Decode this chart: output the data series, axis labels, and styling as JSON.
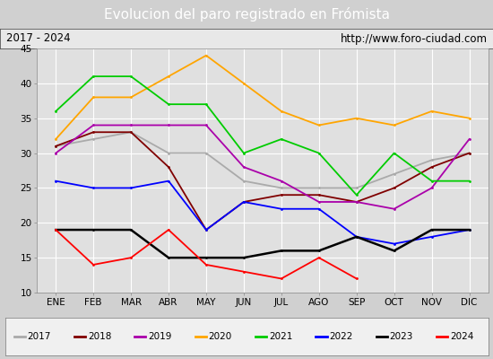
{
  "title": "Evolucion del paro registrado en Frómista",
  "subtitle_left": "2017 - 2024",
  "subtitle_right": "http://www.foro-ciudad.com",
  "months": [
    "ENE",
    "FEB",
    "MAR",
    "ABR",
    "MAY",
    "JUN",
    "JUL",
    "AGO",
    "SEP",
    "OCT",
    "NOV",
    "DIC"
  ],
  "ylim": [
    10,
    45
  ],
  "yticks": [
    10,
    15,
    20,
    25,
    30,
    35,
    40,
    45
  ],
  "series": {
    "2017": {
      "color": "#aaaaaa",
      "values": [
        31,
        32,
        33,
        30,
        30,
        26,
        25,
        25,
        25,
        27,
        29,
        30
      ]
    },
    "2018": {
      "color": "#800000",
      "values": [
        31,
        33,
        33,
        28,
        19,
        23,
        24,
        24,
        23,
        25,
        28,
        30
      ]
    },
    "2019": {
      "color": "#aa00aa",
      "values": [
        30,
        34,
        34,
        34,
        34,
        28,
        26,
        23,
        23,
        22,
        25,
        32
      ]
    },
    "2020": {
      "color": "#ffa500",
      "values": [
        32,
        38,
        38,
        41,
        44,
        40,
        36,
        34,
        35,
        34,
        36,
        35
      ]
    },
    "2021": {
      "color": "#00cc00",
      "values": [
        36,
        41,
        41,
        37,
        37,
        30,
        32,
        30,
        24,
        30,
        26,
        26
      ]
    },
    "2022": {
      "color": "#0000ff",
      "values": [
        26,
        25,
        25,
        26,
        19,
        23,
        22,
        22,
        18,
        17,
        18,
        19
      ]
    },
    "2023": {
      "color": "#000000",
      "values": [
        19,
        19,
        19,
        15,
        15,
        15,
        16,
        16,
        18,
        16,
        19,
        19
      ]
    },
    "2024": {
      "color": "#ff0000",
      "values": [
        19,
        14,
        15,
        19,
        14,
        13,
        12,
        15,
        12,
        null,
        null,
        null
      ]
    }
  },
  "title_bg_color": "#4472c4",
  "title_font_color": "#ffffff",
  "subtitle_bg_color": "#e8e8e8",
  "plot_bg_color": "#e0e0e0",
  "grid_color": "#ffffff",
  "legend_bg_color": "#f0f0f0",
  "outer_bg_color": "#d0d0d0",
  "legend_years": [
    "2017",
    "2018",
    "2019",
    "2020",
    "2021",
    "2022",
    "2023",
    "2024"
  ]
}
